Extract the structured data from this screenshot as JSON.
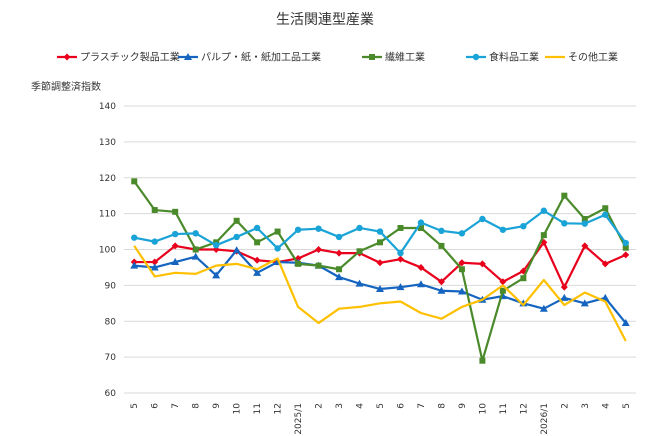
{
  "chart_data": {
    "type": "line",
    "title": "生活関連型産業",
    "ylabel": "季節調整済指数",
    "xlabel": "",
    "ylim": [
      60,
      140
    ],
    "yticks": [
      "60",
      "70",
      "80",
      "90",
      "100",
      "110",
      "120",
      "130",
      "140"
    ],
    "categories": [
      "5",
      "6",
      "7",
      "8",
      "9",
      "10",
      "11",
      "12",
      "2025/1",
      "2",
      "3",
      "4",
      "5",
      "6",
      "7",
      "8",
      "9",
      "10",
      "11",
      "12",
      "2026/1",
      "2",
      "3",
      "4",
      "5"
    ],
    "grid": true,
    "legend_position": "top",
    "series": [
      {
        "name": "プラスチック製品工業",
        "color": "#e8001c",
        "marker": "diamond",
        "values": [
          96.5,
          96.5,
          101,
          100,
          100,
          99.5,
          97,
          96.5,
          97.5,
          100,
          99,
          99,
          96.3,
          97.3,
          95,
          91,
          96.3,
          96,
          91,
          94,
          102,
          89.5,
          101,
          96,
          98.5
        ]
      },
      {
        "name": "パルプ・紙・紙加工品工業",
        "color": "#1565c0",
        "marker": "triangle",
        "values": [
          95.5,
          95,
          96.5,
          98,
          92.8,
          99.8,
          93.5,
          96.5,
          96.3,
          95.5,
          92.3,
          90.5,
          89,
          89.5,
          90.3,
          88.5,
          88.3,
          86,
          87,
          85,
          83.5,
          86.5,
          85,
          86.5,
          79.5
        ]
      },
      {
        "name": "繊維工業",
        "color": "#4a8a2a",
        "marker": "square",
        "values": [
          119,
          111,
          110.5,
          100,
          102,
          108,
          102,
          105,
          96,
          95.5,
          94.5,
          99.5,
          102,
          106,
          106,
          101,
          94.5,
          69,
          88.5,
          92,
          104,
          115,
          108.5,
          111.5,
          100.5
        ]
      },
      {
        "name": "食料品工業",
        "color": "#1aa3d6",
        "marker": "circle",
        "values": [
          103.3,
          102.2,
          104.3,
          104.5,
          101.2,
          103.5,
          106,
          100.3,
          105.5,
          105.8,
          103.5,
          106,
          105,
          99,
          107.5,
          105.2,
          104.5,
          108.5,
          105.5,
          106.5,
          110.8,
          107.3,
          107.2,
          109.7,
          101.8
        ]
      },
      {
        "name": "その他工業",
        "color": "#ffc000",
        "marker": "none",
        "values": [
          101,
          92.5,
          93.5,
          93.2,
          95.5,
          96,
          94.5,
          97.5,
          84,
          79.5,
          83.5,
          84,
          85,
          85.5,
          82.3,
          80.7,
          84,
          86,
          90,
          84.5,
          91.5,
          84.5,
          88,
          85.5,
          74.5
        ]
      }
    ]
  }
}
